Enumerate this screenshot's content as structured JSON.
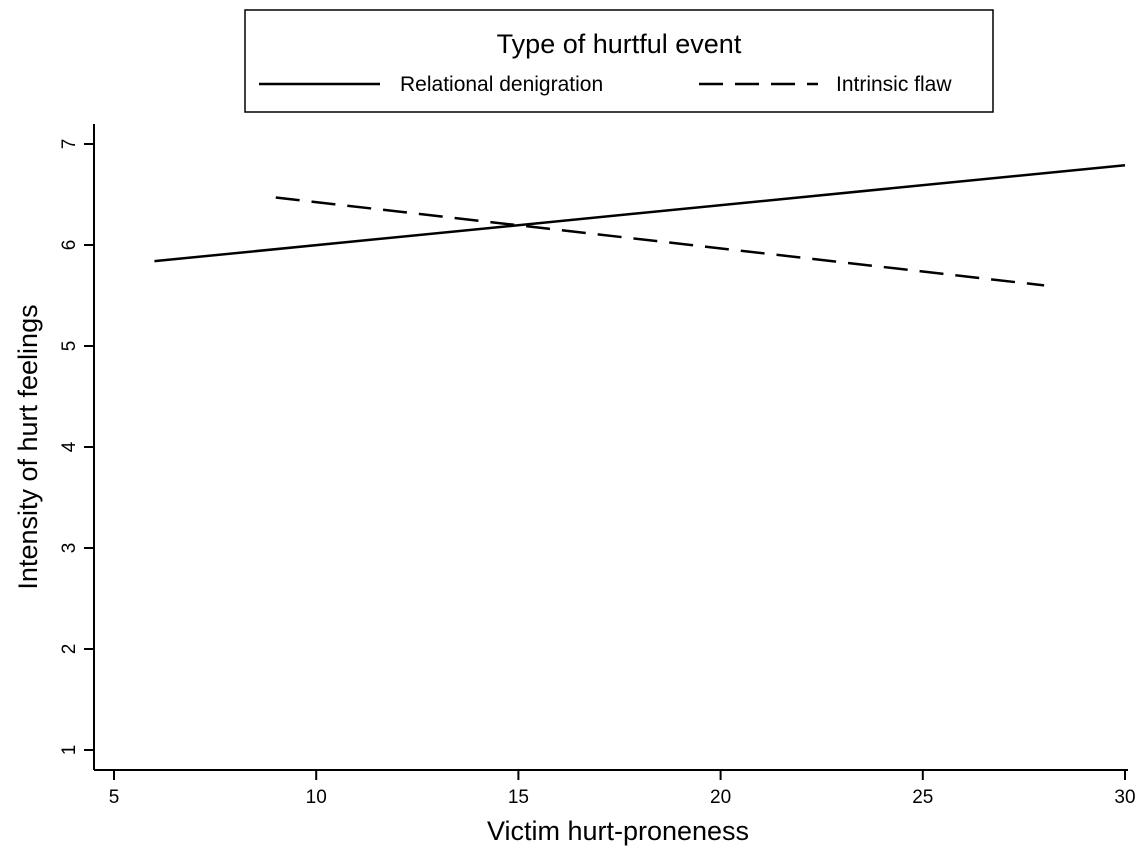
{
  "chart_data": {
    "type": "line",
    "xlabel": "Victim hurt-proneness",
    "ylabel": "Intensity of hurt feelings",
    "xlim": [
      5,
      30
    ],
    "ylim": [
      1,
      7
    ],
    "x_ticks": [
      5,
      10,
      15,
      20,
      25,
      30
    ],
    "y_ticks": [
      1,
      2,
      3,
      4,
      5,
      6,
      7
    ],
    "grid": false,
    "legend": {
      "title": "Type of hurtful event",
      "placement": "top"
    },
    "series": [
      {
        "name": "Relational denigration",
        "style": "solid",
        "x": [
          6,
          30
        ],
        "y": [
          5.84,
          6.79
        ]
      },
      {
        "name": "Intrinsic flaw",
        "style": "dashed",
        "x": [
          9,
          28
        ],
        "y": [
          6.47,
          5.6
        ]
      }
    ]
  }
}
